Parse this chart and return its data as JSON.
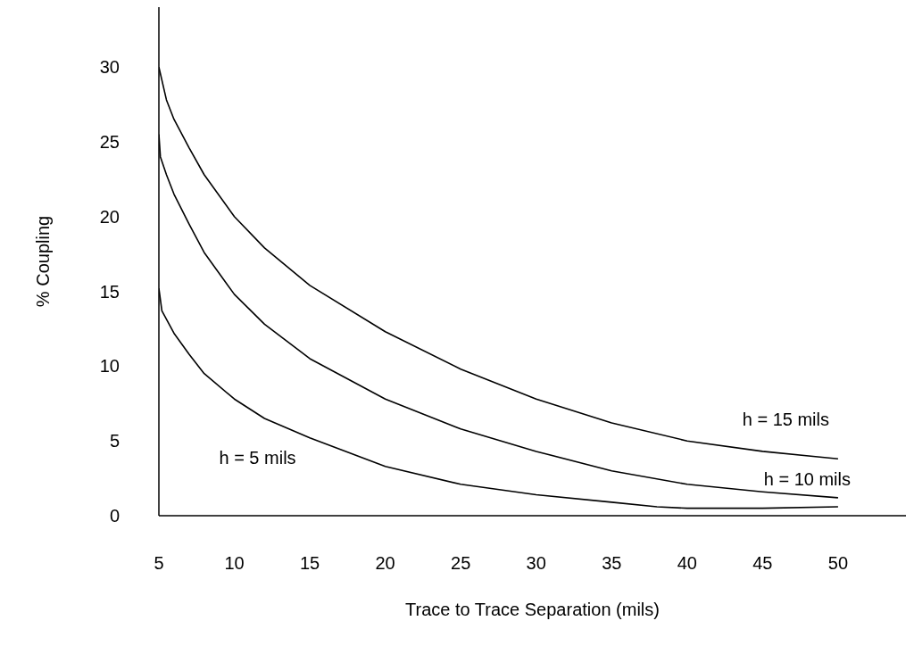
{
  "chart_data": {
    "type": "line",
    "xlabel": "Trace to Trace Separation (mils)",
    "ylabel": "% Coupling",
    "xlim": [
      5,
      54.5
    ],
    "ylim": [
      0,
      34
    ],
    "xticks": [
      5,
      10,
      15,
      20,
      25,
      30,
      35,
      40,
      45,
      50
    ],
    "yticks": [
      0,
      5,
      10,
      15,
      20,
      25,
      30
    ],
    "grid": false,
    "legend": false,
    "marker": "none",
    "line_style": "solid",
    "series": [
      {
        "name": "h = 15 mils",
        "color": "#000000",
        "x": [
          5,
          5.5,
          6,
          7,
          8,
          10,
          12,
          15,
          20,
          25,
          30,
          35,
          40,
          45,
          50
        ],
        "values": [
          30,
          27.8,
          26.5,
          24.6,
          22.8,
          20,
          17.9,
          15.4,
          12.3,
          9.8,
          7.8,
          6.2,
          5,
          4.3,
          3.8
        ]
      },
      {
        "name": "h = 10 mils",
        "color": "#000000",
        "x": [
          5,
          5.1,
          5.5,
          6,
          7,
          8,
          10,
          12,
          15,
          20,
          25,
          30,
          35,
          40,
          45,
          50
        ],
        "values": [
          25.5,
          24,
          22.8,
          21.5,
          19.5,
          17.6,
          14.8,
          12.8,
          10.5,
          7.8,
          5.8,
          4.3,
          3,
          2.1,
          1.6,
          1.2
        ]
      },
      {
        "name": "h = 5 mils",
        "color": "#000000",
        "x": [
          5,
          5.2,
          6,
          7,
          8,
          10,
          12,
          15,
          20,
          25,
          30,
          35,
          38,
          40,
          45,
          50
        ],
        "values": [
          15.2,
          13.7,
          12.2,
          10.8,
          9.5,
          7.8,
          6.5,
          5.2,
          3.3,
          2.1,
          1.4,
          0.9,
          0.6,
          0.5,
          0.5,
          0.6
        ]
      }
    ]
  }
}
